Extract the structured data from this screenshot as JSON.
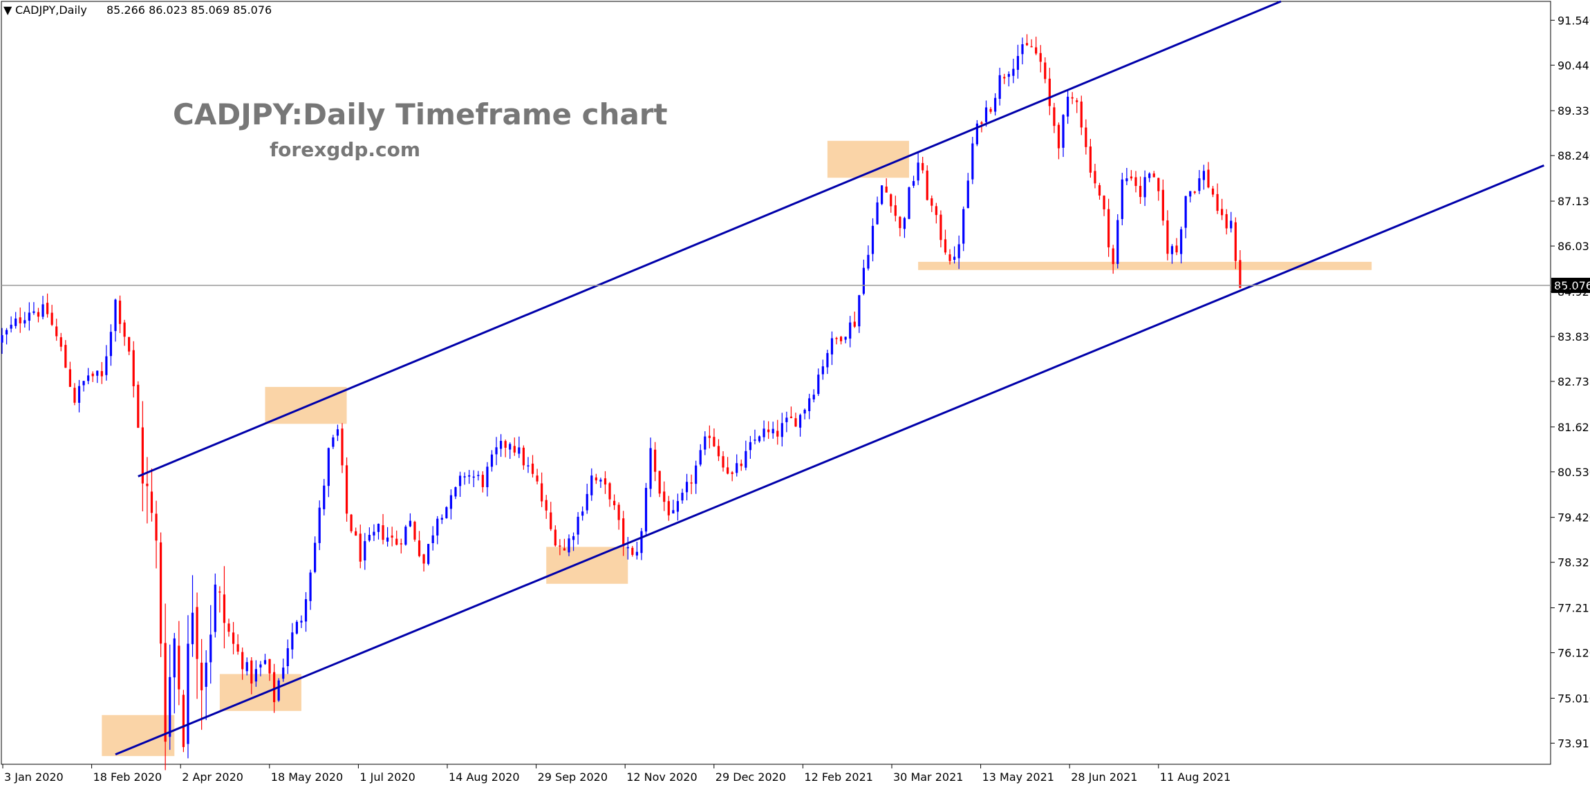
{
  "chart_data": {
    "type": "candlestick",
    "symbol": "CADJPY",
    "timeframe": "Daily",
    "header": {
      "marker": "▼",
      "symbol_tf": "CADJPY,Daily",
      "ohlc": "85.266 86.023 85.069 85.076"
    },
    "title": "CADJPY:Daily Timeframe chart",
    "subtitle": "forexgdp.com",
    "ylim": [
      73.4,
      92.0
    ],
    "y_ticks": [
      "91.540",
      "90.445",
      "89.335",
      "88.240",
      "87.130",
      "86.035",
      "84.925",
      "83.830",
      "82.735",
      "81.625",
      "80.530",
      "79.420",
      "78.325",
      "77.215",
      "76.120",
      "75.010",
      "73.915"
    ],
    "x_ticks": [
      "3 Jan 2020",
      "18 Feb 2020",
      "2 Apr 2020",
      "18 May 2020",
      "1 Jul 2020",
      "14 Aug 2020",
      "29 Sep 2020",
      "12 Nov 2020",
      "29 Dec 2020",
      "12 Feb 2021",
      "30 Mar 2021",
      "13 May 2021",
      "28 Jun 2021",
      "11 Aug 2021"
    ],
    "current_price": "85.076",
    "colors": {
      "bull": "#0000ff",
      "bear": "#ff0000",
      "trendline": "#0000aa",
      "zone": "#f8c68a",
      "price_line": "#999999",
      "price_label_bg": "#000000"
    },
    "close_path": [
      [
        0,
        83.8
      ],
      [
        6,
        84.5
      ],
      [
        10,
        84.4
      ],
      [
        13,
        83.5
      ],
      [
        16,
        82.3
      ],
      [
        19,
        82.9
      ],
      [
        22,
        82.8
      ],
      [
        25,
        84.7
      ],
      [
        28,
        83.5
      ],
      [
        31,
        80.6
      ],
      [
        34,
        78.6
      ],
      [
        36,
        74.5
      ],
      [
        38,
        76.5
      ],
      [
        40,
        74.4
      ],
      [
        42,
        77.5
      ],
      [
        44,
        75.6
      ],
      [
        47,
        77.5
      ],
      [
        51,
        76.3
      ],
      [
        55,
        75.5
      ],
      [
        58,
        75.9
      ],
      [
        60,
        75.0
      ],
      [
        63,
        76.3
      ],
      [
        66,
        77.0
      ],
      [
        69,
        78.8
      ],
      [
        72,
        81.0
      ],
      [
        74,
        81.5
      ],
      [
        76,
        79.5
      ],
      [
        79,
        78.5
      ],
      [
        83,
        79.1
      ],
      [
        87,
        78.8
      ],
      [
        90,
        79.3
      ],
      [
        93,
        78.3
      ],
      [
        96,
        79.5
      ],
      [
        99,
        79.8
      ],
      [
        102,
        80.5
      ],
      [
        106,
        80.3
      ],
      [
        109,
        81.0
      ],
      [
        112,
        81.3
      ],
      [
        115,
        80.8
      ],
      [
        118,
        80.2
      ],
      [
        121,
        79.1
      ],
      [
        124,
        78.6
      ],
      [
        127,
        79.4
      ],
      [
        130,
        80.4
      ],
      [
        134,
        80.0
      ],
      [
        137,
        78.8
      ],
      [
        139,
        78.4
      ],
      [
        141,
        79.0
      ],
      [
        143,
        81.2
      ],
      [
        145,
        80.0
      ],
      [
        148,
        79.4
      ],
      [
        151,
        80.1
      ],
      [
        154,
        80.9
      ],
      [
        156,
        81.5
      ],
      [
        158,
        81.0
      ],
      [
        161,
        80.4
      ],
      [
        164,
        80.9
      ],
      [
        167,
        81.5
      ],
      [
        170,
        81.4
      ],
      [
        173,
        81.7
      ],
      [
        176,
        81.9
      ],
      [
        179,
        82.6
      ],
      [
        182,
        83.5
      ],
      [
        185,
        83.9
      ],
      [
        188,
        84.2
      ],
      [
        190,
        85.5
      ],
      [
        192,
        86.5
      ],
      [
        194,
        87.5
      ],
      [
        196,
        87.2
      ],
      [
        198,
        86.4
      ],
      [
        200,
        87.3
      ],
      [
        202,
        88.1
      ],
      [
        204,
        87.3
      ],
      [
        206,
        86.6
      ],
      [
        208,
        86.0
      ],
      [
        210,
        85.6
      ],
      [
        212,
        86.8
      ],
      [
        214,
        88.5
      ],
      [
        216,
        89.2
      ],
      [
        218,
        89.5
      ],
      [
        220,
        90.1
      ],
      [
        222,
        90.4
      ],
      [
        224,
        90.7
      ],
      [
        227,
        90.9
      ],
      [
        229,
        90.5
      ],
      [
        231,
        89.4
      ],
      [
        233,
        88.6
      ],
      [
        235,
        89.5
      ],
      [
        237,
        89.7
      ],
      [
        239,
        88.4
      ],
      [
        241,
        87.6
      ],
      [
        243,
        86.8
      ],
      [
        245,
        85.6
      ],
      [
        247,
        87.6
      ],
      [
        249,
        87.8
      ],
      [
        251,
        87.3
      ],
      [
        253,
        87.9
      ],
      [
        255,
        87.2
      ],
      [
        257,
        86.0
      ],
      [
        259,
        85.9
      ],
      [
        261,
        87.3
      ],
      [
        263,
        87.5
      ],
      [
        265,
        87.8
      ],
      [
        267,
        87.3
      ],
      [
        269,
        86.6
      ],
      [
        271,
        86.5
      ],
      [
        273,
        85.1
      ]
    ],
    "candle_count": 274,
    "trendlines": [
      {
        "name": "upper-channel",
        "from": [
          30,
          80.42
        ],
        "to": [
          282,
          92.0
        ]
      },
      {
        "name": "lower-channel",
        "from": [
          25,
          73.64
        ],
        "to": [
          340,
          88.0
        ]
      }
    ],
    "zones": [
      {
        "name": "zone-feb-2020-low",
        "x": [
          22,
          38
        ],
        "y": [
          73.6,
          74.6
        ]
      },
      {
        "name": "zone-apr-2020-low",
        "x": [
          48,
          66
        ],
        "y": [
          74.7,
          75.6
        ]
      },
      {
        "name": "zone-may-2020-high",
        "x": [
          58,
          76
        ],
        "y": [
          81.7,
          82.6
        ]
      },
      {
        "name": "zone-oct-2020-low",
        "x": [
          120,
          138
        ],
        "y": [
          77.8,
          78.7
        ]
      },
      {
        "name": "zone-mar-2021-high",
        "x": [
          182,
          200
        ],
        "y": [
          87.7,
          88.6
        ]
      },
      {
        "name": "support-line-2021",
        "x": [
          202,
          302
        ],
        "y": [
          85.45,
          85.65
        ]
      }
    ]
  }
}
